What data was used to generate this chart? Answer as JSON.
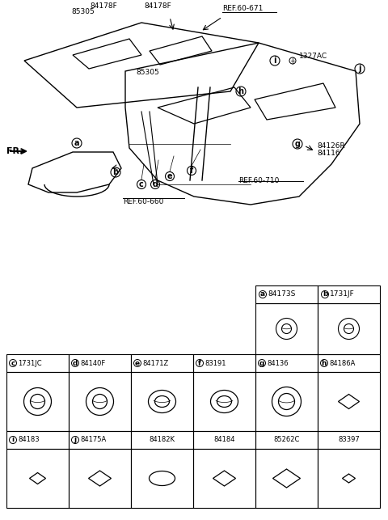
{
  "bg_color": "#ffffff",
  "line_color": "#000000",
  "fig_width": 4.8,
  "fig_height": 6.43,
  "dpi": 100,
  "parts_table": {
    "row0": [
      {
        "label": "a",
        "part": "84173S",
        "col": 4
      },
      {
        "label": "b",
        "part": "1731JF",
        "col": 5
      }
    ],
    "row1": [
      {
        "label": "c",
        "part": "1731JC",
        "col": 0
      },
      {
        "label": "d",
        "part": "84140F",
        "col": 1
      },
      {
        "label": "e",
        "part": "84171Z",
        "col": 2
      },
      {
        "label": "f",
        "part": "83191",
        "col": 3
      },
      {
        "label": "g",
        "part": "84136",
        "col": 4
      },
      {
        "label": "h",
        "part": "84186A",
        "col": 5
      }
    ],
    "row2": [
      {
        "label": "i",
        "part": "84183",
        "col": 0
      },
      {
        "label": "j",
        "part": "84175A",
        "col": 1
      },
      {
        "label": "",
        "part": "84182K",
        "col": 2
      },
      {
        "label": "",
        "part": "84184",
        "col": 3
      },
      {
        "label": "",
        "part": "85262C",
        "col": 4
      },
      {
        "label": "",
        "part": "83397",
        "col": 5
      }
    ]
  }
}
